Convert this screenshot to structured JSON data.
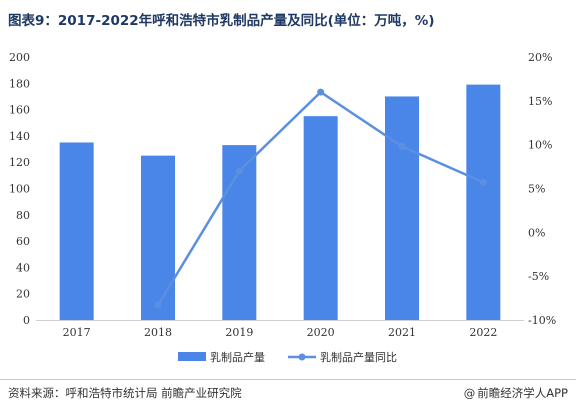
{
  "title": "图表9：2017-2022年呼和浩特市乳制品产量及同比(单位：万吨，%)",
  "footer": {
    "source": "资料来源：呼和浩特市统计局 前瞻产业研究院",
    "brand": "前瞻经济学人APP",
    "brand_icon": "at-sign-icon"
  },
  "colors": {
    "bar": "#4a86e8",
    "line": "#5b8fe0"
  },
  "chart_data": {
    "type": "bar",
    "categories": [
      "2017",
      "2018",
      "2019",
      "2020",
      "2021",
      "2022"
    ],
    "series": [
      {
        "name": "乳制品产量",
        "type": "bar",
        "axis": "left",
        "values": [
          135,
          125,
          133,
          155,
          170,
          179
        ]
      },
      {
        "name": "乳制品产量同比",
        "type": "line",
        "axis": "right",
        "values": [
          null,
          -8.3,
          7.0,
          16.0,
          9.8,
          5.7
        ]
      }
    ],
    "ylim_left": [
      0,
      200
    ],
    "yticks_left": [
      0,
      20,
      40,
      60,
      80,
      100,
      120,
      140,
      160,
      180,
      200
    ],
    "ylim_right": [
      -10,
      20
    ],
    "yticks_right": [
      "-10%",
      "-5%",
      "0%",
      "5%",
      "10%",
      "15%",
      "20%"
    ],
    "legend": [
      "乳制品产量",
      "乳制品产量同比"
    ],
    "legend_position": "bottom"
  }
}
